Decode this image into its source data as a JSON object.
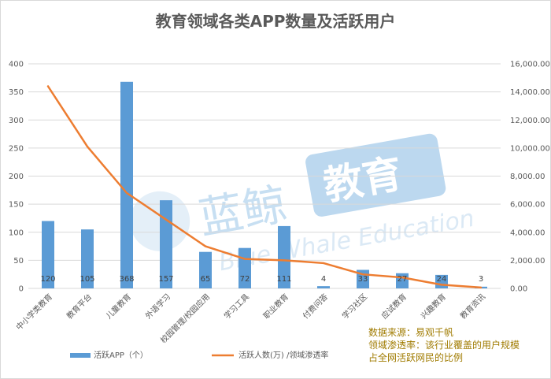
{
  "chart_data": {
    "type": "bar",
    "title": "教育领域各类APP数量及活跃用户",
    "categories": [
      "中小学类教育",
      "教育平台",
      "儿童教育",
      "外语学习",
      "校园管理/校园应用",
      "学习工具",
      "职业教育",
      "付费问答",
      "学习社区",
      "应试教育",
      "兴趣教育",
      "教育资讯"
    ],
    "series": [
      {
        "name": "活跃APP（个）",
        "type": "bar",
        "axis": "left",
        "color": "#5b9bd5",
        "values": [
          120,
          105,
          368,
          157,
          65,
          72,
          111,
          4,
          33,
          27,
          24,
          3
        ]
      },
      {
        "name": "活跃人数(万) /领域渗透率",
        "type": "line",
        "axis": "right",
        "color": "#ed7d31",
        "values": [
          14400,
          10100,
          6800,
          4900,
          3000,
          2100,
          2000,
          1800,
          1000,
          780,
          260,
          60
        ]
      }
    ],
    "ylim": [
      0,
      400
    ],
    "y_ticks": [
      "0",
      "50",
      "100",
      "150",
      "200",
      "250",
      "300",
      "350",
      "400"
    ],
    "y2lim": [
      0,
      16000
    ],
    "y2_ticks": [
      "0.00",
      "2,000.00",
      "4,000.00",
      "6,000.00",
      "8,000.00",
      "10,000.00",
      "12,000.00",
      "14,000.00",
      "16,000.00"
    ],
    "grid": true,
    "legend_position": "bottom-left"
  },
  "watermark": {
    "cn": "蓝鲸",
    "box": "教育",
    "en": "Blue Whale Education"
  },
  "notes": [
    "数据来源：易观千帆",
    "领域渗透率：该行业覆盖的用户规模",
    "占全网活跃网民的比例"
  ],
  "colors": {
    "bar": "#5b9bd5",
    "line": "#ed7d31",
    "note": "#a07b00",
    "grid": "#d9d9d9"
  }
}
